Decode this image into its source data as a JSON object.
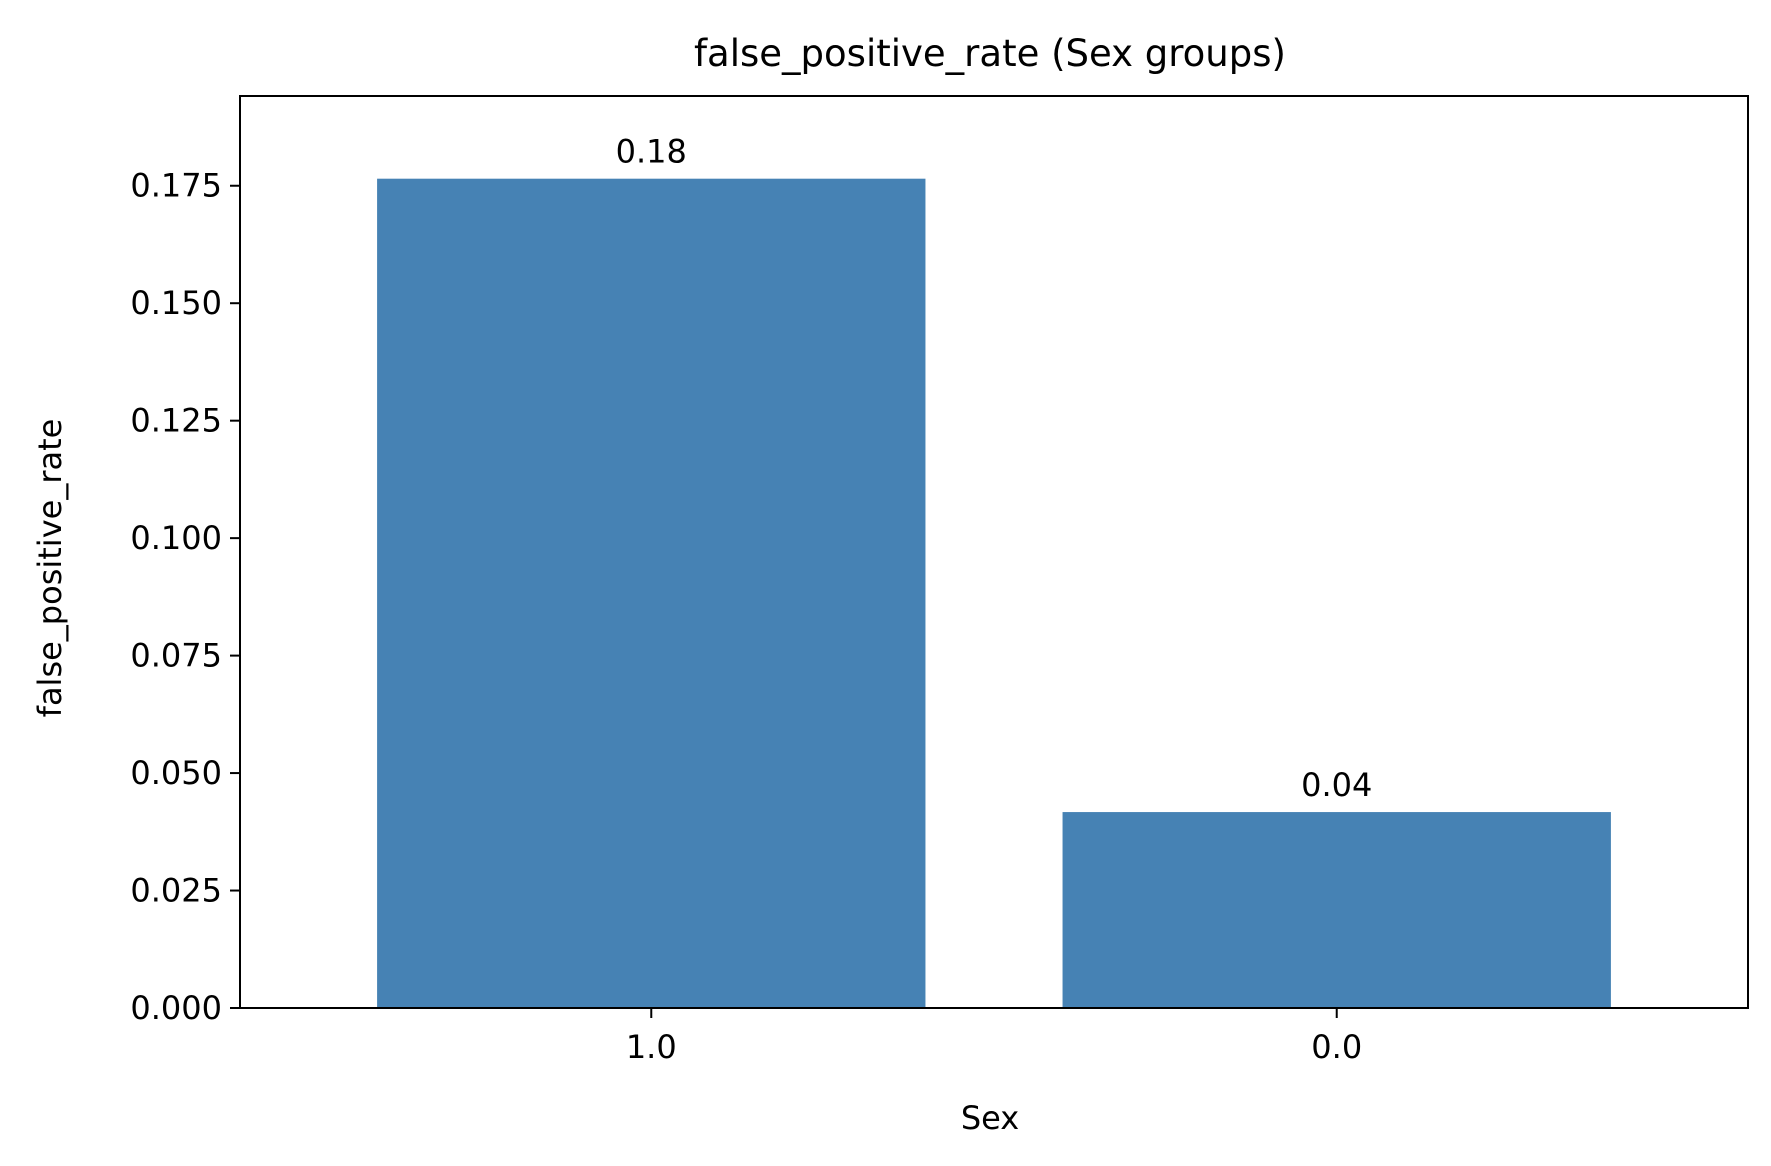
{
  "chart_data": {
    "type": "bar",
    "title": "false_positive_rate (Sex groups)",
    "xlabel": "Sex",
    "ylabel": "false_positive_rate",
    "categories": [
      "1.0",
      "0.0"
    ],
    "values": [
      0.1765,
      0.0417
    ],
    "value_labels": [
      "0.18",
      "0.04"
    ],
    "ylim": [
      0,
      0.1941
    ],
    "yticks": [
      0.0,
      0.025,
      0.05,
      0.075,
      0.1,
      0.125,
      0.15,
      0.175
    ],
    "ytick_labels": [
      "0.000",
      "0.025",
      "0.050",
      "0.075",
      "0.100",
      "0.125",
      "0.150",
      "0.175"
    ],
    "grid": false,
    "legend": "none",
    "colors": {
      "bar": "#4682b4",
      "axis": "#000000"
    }
  }
}
